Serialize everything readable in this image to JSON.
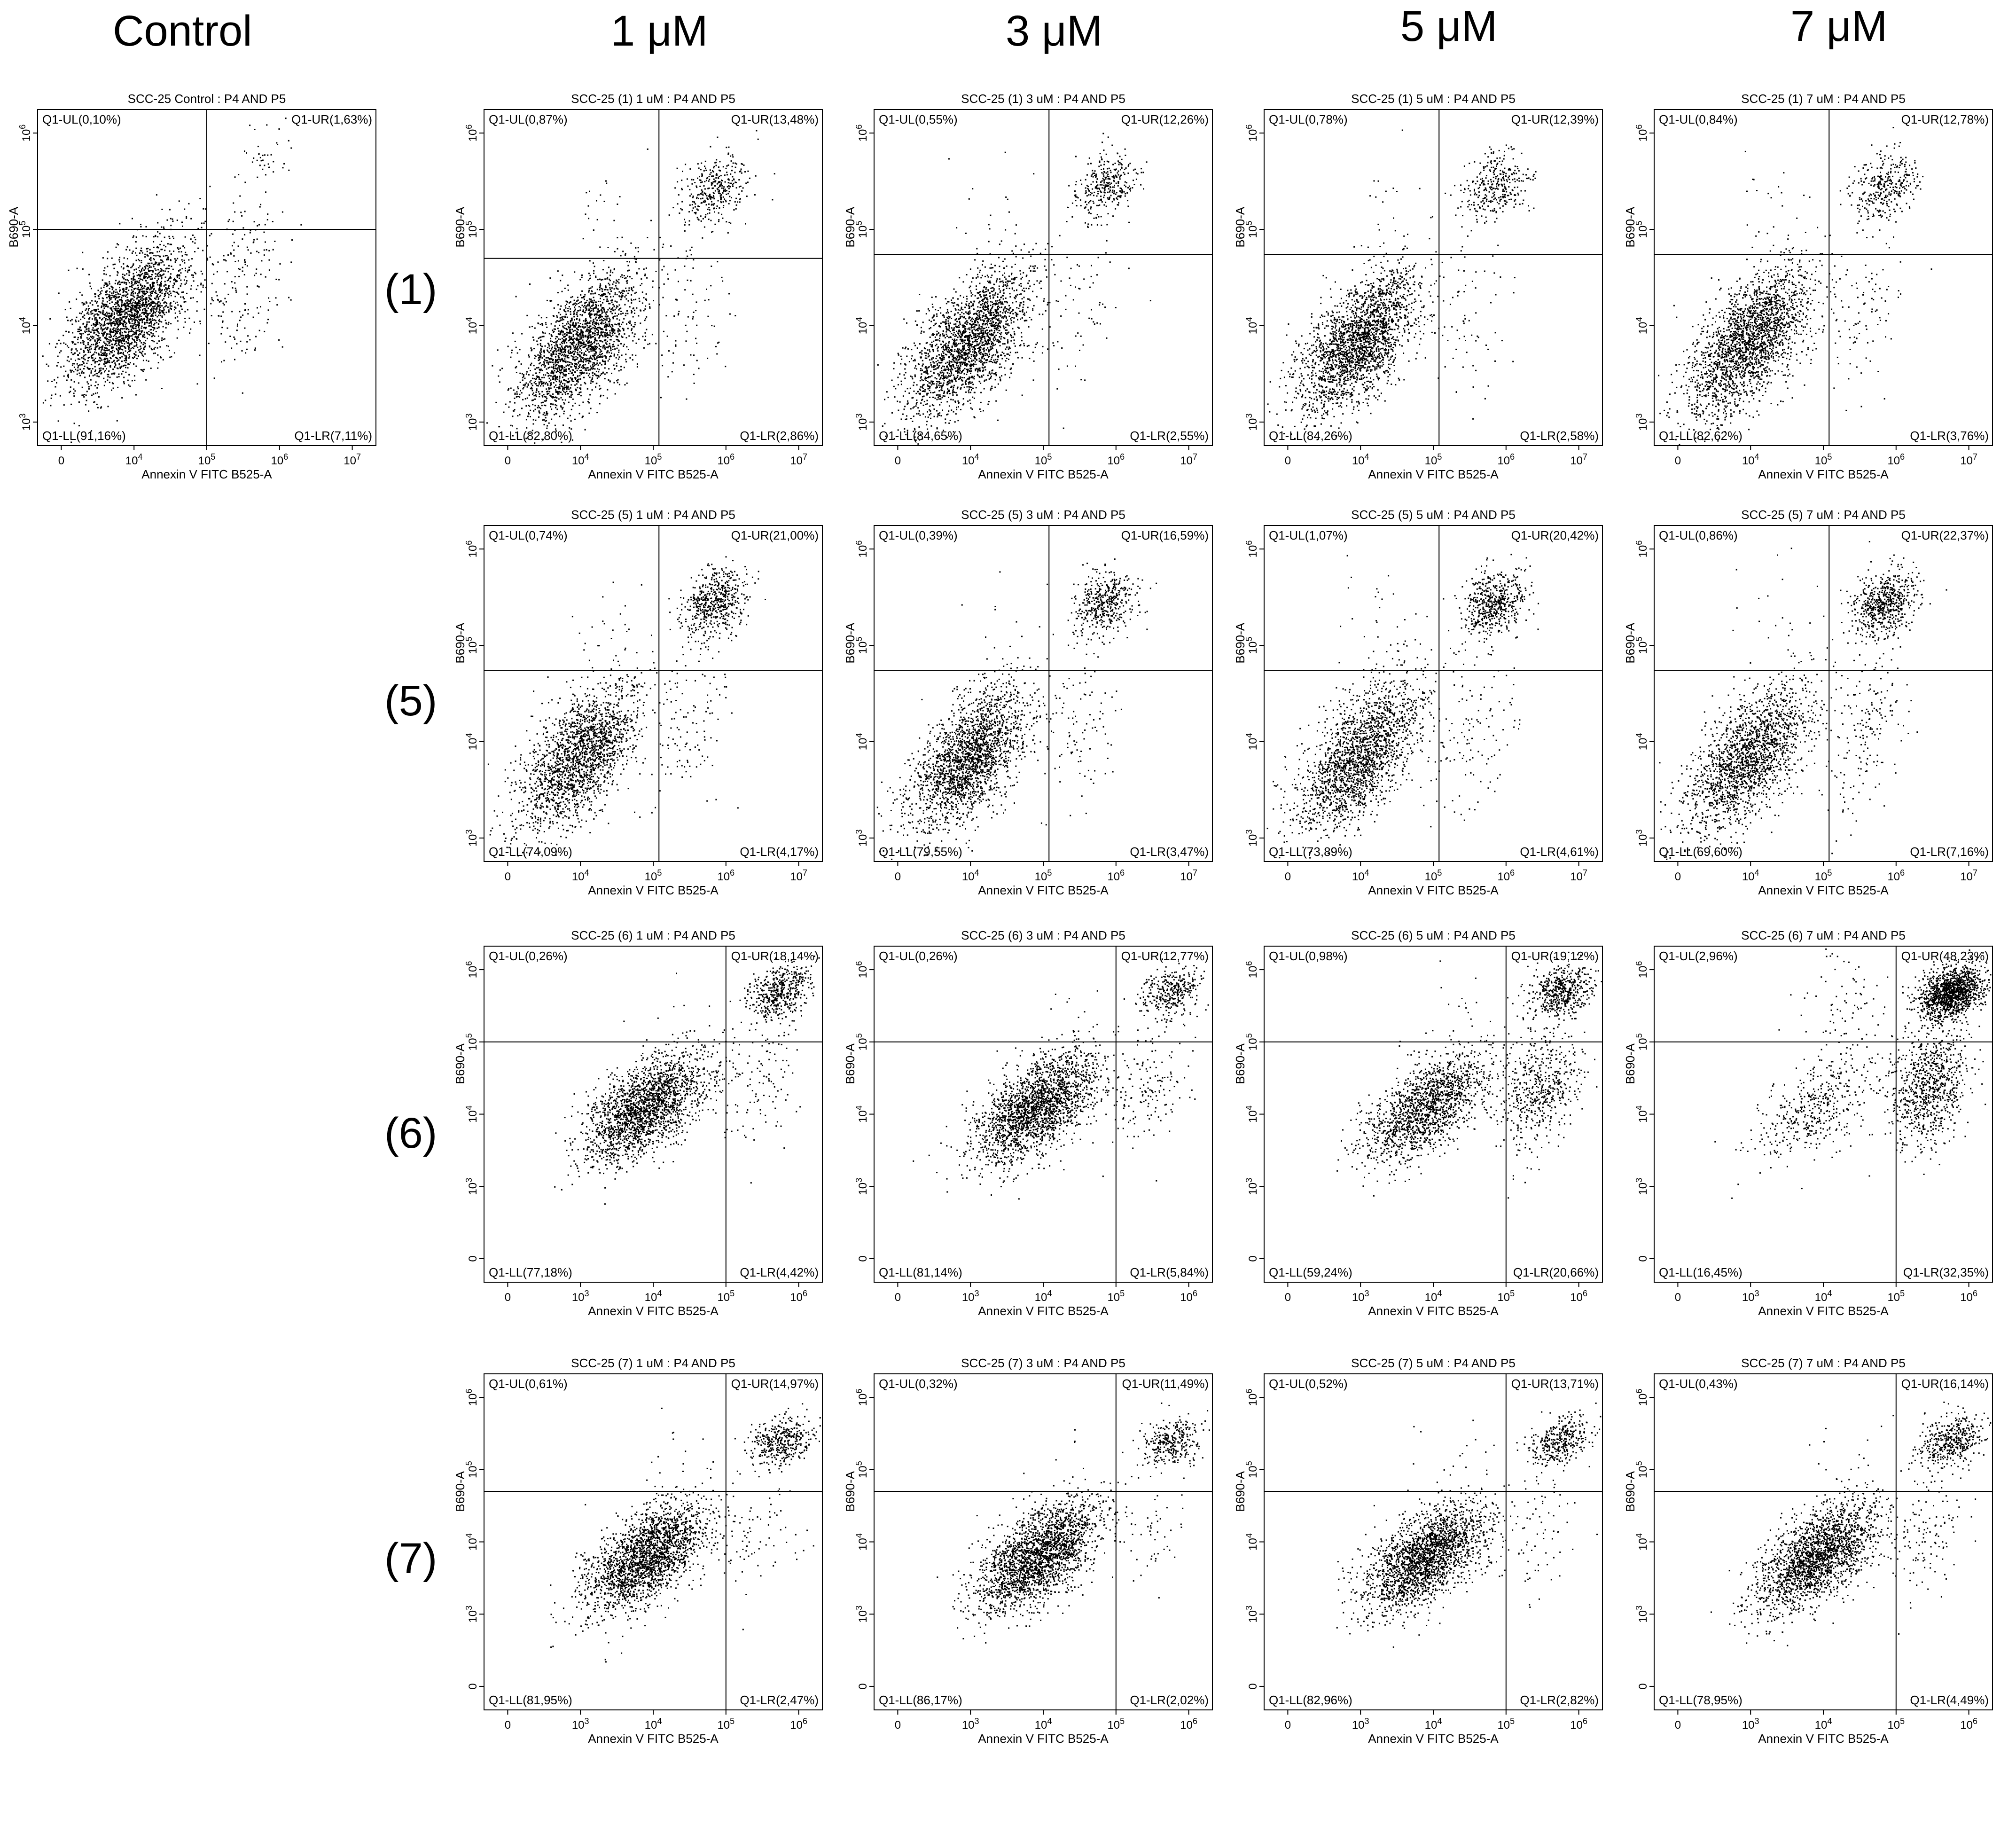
{
  "figure": {
    "columns": [
      "Control",
      "1 μM",
      "3 μM",
      "5 μM",
      "7 μM"
    ],
    "rows": [
      "(1)",
      "(5)",
      "(6)",
      "(7)"
    ]
  },
  "chart_data": [
    {
      "id": "c",
      "type": "scatter",
      "title": "SCC-25 Control : P4 AND P5",
      "xlabel": "Annexin V  FITC B525-A",
      "ylabel": "B690-A",
      "xscale": "log",
      "yscale": "log",
      "xticks": [
        "0",
        "10^4",
        "10^5",
        "10^6",
        "10^7"
      ],
      "yticks": [
        "10^3",
        "10^4",
        "10^5",
        "10^6"
      ],
      "quadrants": {
        "UL": "Q1-UL(0,10%)",
        "UR": "Q1-UR(1,63%)",
        "LL": "Q1-LL(91,16%)",
        "LR": "Q1-LR(7,11%)"
      },
      "gate": {
        "x": 100000,
        "y": 100000
      }
    },
    {
      "id": "r1c1",
      "type": "scatter",
      "title": "SCC-25 (1) 1 uM : P4 AND P5",
      "xlabel": "Annexin V  FITC B525-A",
      "ylabel": "B690-A",
      "xscale": "log",
      "yscale": "log",
      "xticks": [
        "0",
        "10^4",
        "10^5",
        "10^6",
        "10^7"
      ],
      "yticks": [
        "10^3",
        "10^4",
        "10^5",
        "10^6"
      ],
      "quadrants": {
        "UL": "Q1-UL(0,87%)",
        "UR": "Q1-UR(13,48%)",
        "LL": "Q1-LL(82,80%)",
        "LR": "Q1-LR(2,86%)"
      },
      "gate": {
        "x": 120000,
        "y": 50000
      }
    },
    {
      "id": "r1c2",
      "type": "scatter",
      "title": "SCC-25 (1) 3 uM : P4 AND P5",
      "xlabel": "Annexin V  FITC B525-A",
      "ylabel": "B690-A",
      "xscale": "log",
      "yscale": "log",
      "xticks": [
        "0",
        "10^4",
        "10^5",
        "10^6",
        "10^7"
      ],
      "yticks": [
        "10^3",
        "10^4",
        "10^5",
        "10^6"
      ],
      "quadrants": {
        "UL": "Q1-UL(0,55%)",
        "UR": "Q1-UR(12,26%)",
        "LL": "Q1-LL(84,65%)",
        "LR": "Q1-LR(2,55%)"
      },
      "gate": {
        "x": 120000,
        "y": 55000
      }
    },
    {
      "id": "r1c3",
      "type": "scatter",
      "title": "SCC-25 (1) 5 uM : P4 AND P5",
      "xlabel": "Annexin V  FITC B525-A",
      "ylabel": "B690-A",
      "xscale": "log",
      "yscale": "log",
      "xticks": [
        "0",
        "10^4",
        "10^5",
        "10^6",
        "10^7"
      ],
      "yticks": [
        "10^3",
        "10^4",
        "10^5",
        "10^6"
      ],
      "quadrants": {
        "UL": "Q1-UL(0,78%)",
        "UR": "Q1-UR(12,39%)",
        "LL": "Q1-LL(84,26%)",
        "LR": "Q1-LR(2,58%)"
      },
      "gate": {
        "x": 120000,
        "y": 55000
      }
    },
    {
      "id": "r1c4",
      "type": "scatter",
      "title": "SCC-25 (1) 7 uM : P4 AND P5",
      "xlabel": "Annexin V  FITC B525-A",
      "ylabel": "B690-A",
      "xscale": "log",
      "yscale": "log",
      "xticks": [
        "0",
        "10^4",
        "10^5",
        "10^6",
        "10^7"
      ],
      "yticks": [
        "10^3",
        "10^4",
        "10^5",
        "10^6"
      ],
      "quadrants": {
        "UL": "Q1-UL(0,84%)",
        "UR": "Q1-UR(12,78%)",
        "LL": "Q1-LL(82,62%)",
        "LR": "Q1-LR(3,76%)"
      },
      "gate": {
        "x": 120000,
        "y": 55000
      }
    },
    {
      "id": "r2c1",
      "type": "scatter",
      "title": "SCC-25 (5) 1 uM : P4 AND P5",
      "xlabel": "Annexin V  FITC B525-A",
      "ylabel": "B690-A",
      "xscale": "log",
      "yscale": "log",
      "xticks": [
        "0",
        "10^4",
        "10^5",
        "10^6",
        "10^7"
      ],
      "yticks": [
        "10^3",
        "10^4",
        "10^5",
        "10^6"
      ],
      "quadrants": {
        "UL": "Q1-UL(0,74%)",
        "UR": "Q1-UR(21,00%)",
        "LL": "Q1-LL(74,09%)",
        "LR": "Q1-LR(4,17%)"
      },
      "gate": {
        "x": 120000,
        "y": 55000
      }
    },
    {
      "id": "r2c2",
      "type": "scatter",
      "title": "SCC-25 (5) 3 uM : P4 AND P5",
      "xlabel": "Annexin V  FITC B525-A",
      "ylabel": "B690-A",
      "xscale": "log",
      "yscale": "log",
      "xticks": [
        "0",
        "10^4",
        "10^5",
        "10^6",
        "10^7"
      ],
      "yticks": [
        "10^3",
        "10^4",
        "10^5",
        "10^6"
      ],
      "quadrants": {
        "UL": "Q1-UL(0,39%)",
        "UR": "Q1-UR(16,59%)",
        "LL": "Q1-LL(79,55%)",
        "LR": "Q1-LR(3,47%)"
      },
      "gate": {
        "x": 120000,
        "y": 55000
      }
    },
    {
      "id": "r2c3",
      "type": "scatter",
      "title": "SCC-25 (5) 5 uM : P4 AND P5",
      "xlabel": "Annexin V  FITC B525-A",
      "ylabel": "B690-A",
      "xscale": "log",
      "yscale": "log",
      "xticks": [
        "0",
        "10^4",
        "10^5",
        "10^6",
        "10^7"
      ],
      "yticks": [
        "10^3",
        "10^4",
        "10^5",
        "10^6"
      ],
      "quadrants": {
        "UL": "Q1-UL(1,07%)",
        "UR": "Q1-UR(20,42%)",
        "LL": "Q1-LL(73,89%)",
        "LR": "Q1-LR(4,61%)"
      },
      "gate": {
        "x": 120000,
        "y": 55000
      }
    },
    {
      "id": "r2c4",
      "type": "scatter",
      "title": "SCC-25 (5) 7 uM : P4 AND P5",
      "xlabel": "Annexin V  FITC B525-A",
      "ylabel": "B690-A",
      "xscale": "log",
      "yscale": "log",
      "xticks": [
        "0",
        "10^4",
        "10^5",
        "10^6",
        "10^7"
      ],
      "yticks": [
        "10^3",
        "10^4",
        "10^5",
        "10^6"
      ],
      "quadrants": {
        "UL": "Q1-UL(0,86%)",
        "UR": "Q1-UR(22,37%)",
        "LL": "Q1-LL(69,60%)",
        "LR": "Q1-LR(7,16%)"
      },
      "gate": {
        "x": 120000,
        "y": 55000
      }
    },
    {
      "id": "r3c1",
      "type": "scatter",
      "title": "SCC-25 (6) 1 uM : P4 AND P5",
      "xlabel": "Annexin V  FITC B525-A",
      "ylabel": "B690-A",
      "xscale": "log",
      "yscale": "log",
      "xticks": [
        "0",
        "10^3",
        "10^4",
        "10^5",
        "10^6"
      ],
      "yticks": [
        "0",
        "10^3",
        "10^4",
        "10^5",
        "10^6"
      ],
      "quadrants": {
        "UL": "Q1-UL(0,26%)",
        "UR": "Q1-UR(18,14%)",
        "LL": "Q1-LL(77,18%)",
        "LR": "Q1-LR(4,42%)"
      },
      "gate": {
        "x": 100000,
        "y": 100000
      }
    },
    {
      "id": "r3c2",
      "type": "scatter",
      "title": "SCC-25 (6) 3 uM : P4 AND P5",
      "xlabel": "Annexin V  FITC B525-A",
      "ylabel": "B690-A",
      "xscale": "log",
      "yscale": "log",
      "xticks": [
        "0",
        "10^3",
        "10^4",
        "10^5",
        "10^6"
      ],
      "yticks": [
        "0",
        "10^3",
        "10^4",
        "10^5",
        "10^6"
      ],
      "quadrants": {
        "UL": "Q1-UL(0,26%)",
        "UR": "Q1-UR(12,77%)",
        "LL": "Q1-LL(81,14%)",
        "LR": "Q1-LR(5,84%)"
      },
      "gate": {
        "x": 100000,
        "y": 100000
      }
    },
    {
      "id": "r3c3",
      "type": "scatter",
      "title": "SCC-25 (6) 5 uM : P4 AND P5",
      "xlabel": "Annexin V  FITC B525-A",
      "ylabel": "B690-A",
      "xscale": "log",
      "yscale": "log",
      "xticks": [
        "0",
        "10^3",
        "10^4",
        "10^5",
        "10^6"
      ],
      "yticks": [
        "0",
        "10^3",
        "10^4",
        "10^5",
        "10^6"
      ],
      "quadrants": {
        "UL": "Q1-UL(0,98%)",
        "UR": "Q1-UR(19,12%)",
        "LL": "Q1-LL(59,24%)",
        "LR": "Q1-LR(20,66%)"
      },
      "gate": {
        "x": 100000,
        "y": 100000
      }
    },
    {
      "id": "r3c4",
      "type": "scatter",
      "title": "SCC-25 (6) 7 uM : P4 AND P5",
      "xlabel": "Annexin V  FITC B525-A",
      "ylabel": "B690-A",
      "xscale": "log",
      "yscale": "log",
      "xticks": [
        "0",
        "10^3",
        "10^4",
        "10^5",
        "10^6"
      ],
      "yticks": [
        "0",
        "10^3",
        "10^4",
        "10^5",
        "10^6"
      ],
      "quadrants": {
        "UL": "Q1-UL(2,96%)",
        "UR": "Q1-UR(48,23%)",
        "LL": "Q1-LL(16,45%)",
        "LR": "Q1-LR(32,35%)"
      },
      "gate": {
        "x": 100000,
        "y": 100000
      }
    },
    {
      "id": "r4c1",
      "type": "scatter",
      "title": "SCC-25 (7) 1 uM : P4 AND P5",
      "xlabel": "Annexin V  FITC B525-A",
      "ylabel": "B690-A",
      "xscale": "log",
      "yscale": "log",
      "xticks": [
        "0",
        "10^3",
        "10^4",
        "10^5",
        "10^6"
      ],
      "yticks": [
        "0",
        "10^3",
        "10^4",
        "10^5",
        "10^6"
      ],
      "quadrants": {
        "UL": "Q1-UL(0,61%)",
        "UR": "Q1-UR(14,97%)",
        "LL": "Q1-LL(81,95%)",
        "LR": "Q1-LR(2,47%)"
      },
      "gate": {
        "x": 100000,
        "y": 50000
      }
    },
    {
      "id": "r4c2",
      "type": "scatter",
      "title": "SCC-25 (7) 3 uM : P4 AND P5",
      "xlabel": "Annexin V  FITC B525-A",
      "ylabel": "B690-A",
      "xscale": "log",
      "yscale": "log",
      "xticks": [
        "0",
        "10^3",
        "10^4",
        "10^5",
        "10^6"
      ],
      "yticks": [
        "0",
        "10^3",
        "10^4",
        "10^5",
        "10^6"
      ],
      "quadrants": {
        "UL": "Q1-UL(0,32%)",
        "UR": "Q1-UR(11,49%)",
        "LL": "Q1-LL(86,17%)",
        "LR": "Q1-LR(2,02%)"
      },
      "gate": {
        "x": 100000,
        "y": 50000
      }
    },
    {
      "id": "r4c3",
      "type": "scatter",
      "title": "SCC-25 (7) 5 uM : P4 AND P5",
      "xlabel": "Annexin V  FITC B525-A",
      "ylabel": "B690-A",
      "xscale": "log",
      "yscale": "log",
      "xticks": [
        "0",
        "10^3",
        "10^4",
        "10^5",
        "10^6"
      ],
      "yticks": [
        "0",
        "10^3",
        "10^4",
        "10^5",
        "10^6"
      ],
      "quadrants": {
        "UL": "Q1-UL(0,52%)",
        "UR": "Q1-UR(13,71%)",
        "LL": "Q1-LL(82,96%)",
        "LR": "Q1-LR(2,82%)"
      },
      "gate": {
        "x": 100000,
        "y": 50000
      }
    },
    {
      "id": "r4c4",
      "type": "scatter",
      "title": "SCC-25 (7) 7 uM : P4 AND P5",
      "xlabel": "Annexin V  FITC B525-A",
      "ylabel": "B690-A",
      "xscale": "log",
      "yscale": "log",
      "xticks": [
        "0",
        "10^3",
        "10^4",
        "10^5",
        "10^6"
      ],
      "yticks": [
        "0",
        "10^3",
        "10^4",
        "10^5",
        "10^6"
      ],
      "quadrants": {
        "UL": "Q1-UL(0,43%)",
        "UR": "Q1-UR(16,14%)",
        "LL": "Q1-LL(78,95%)",
        "LR": "Q1-LR(4,49%)"
      },
      "gate": {
        "x": 100000,
        "y": 50000
      }
    }
  ]
}
